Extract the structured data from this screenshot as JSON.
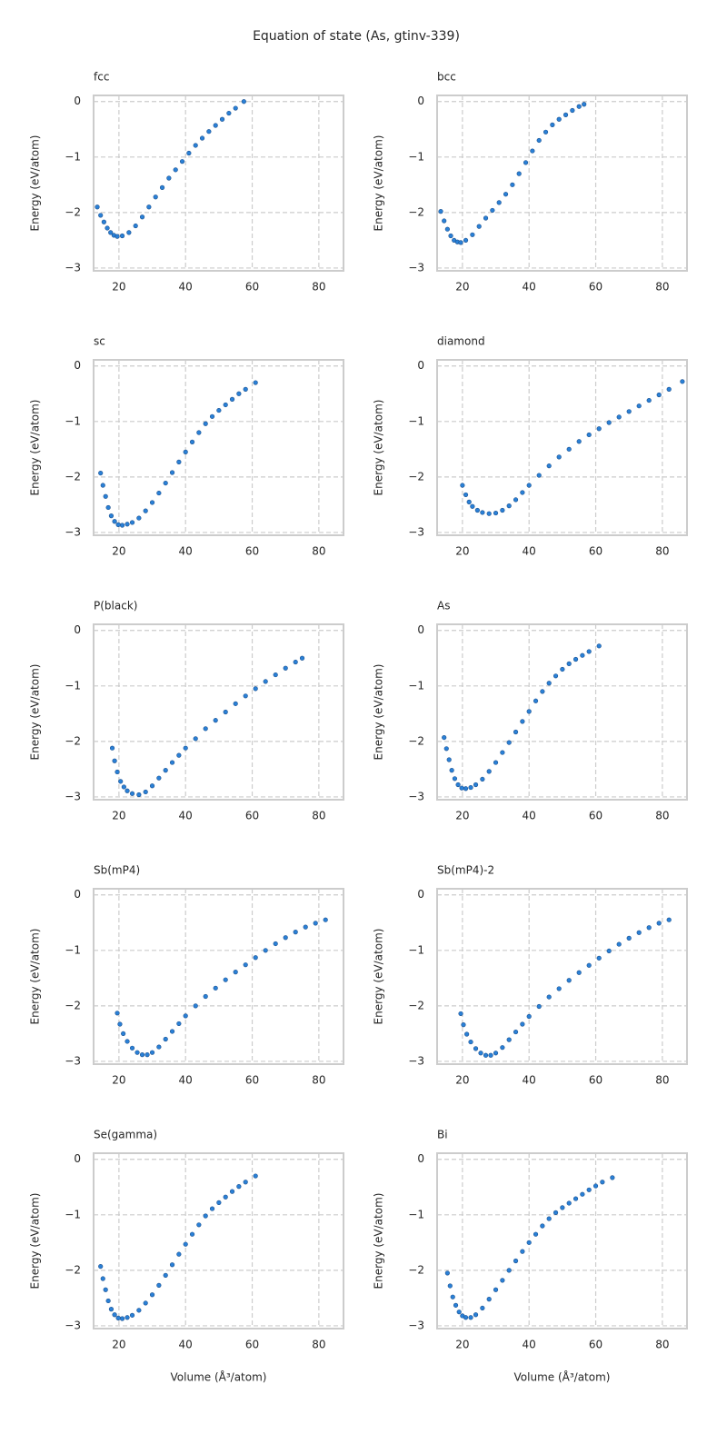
{
  "title": "Equation of state (As, gtinv-339)",
  "chart_data": [
    {
      "type": "scatter",
      "title": "fcc",
      "ylabel": "Energy (eV/atom)",
      "color": "#2a80d6",
      "grid": true,
      "xlim": [
        12.4,
        87.4
      ],
      "ylim": [
        -3.05,
        0.11
      ],
      "xticks": [
        20,
        40,
        60,
        80
      ],
      "yticks": [
        0,
        {
          "value": -1,
          "label": "−1"
        },
        {
          "value": -2,
          "label": "−2"
        },
        {
          "value": -3,
          "label": "−3"
        }
      ],
      "x": [
        13.5,
        14.5,
        15.5,
        16.5,
        17.5,
        18.5,
        19.5,
        21,
        23,
        25,
        27,
        29,
        31,
        33,
        35,
        37,
        39,
        41,
        43,
        45,
        47,
        49,
        51,
        53,
        55,
        57.5
      ],
      "values": [
        -1.9,
        -2.05,
        -2.17,
        -2.28,
        -2.36,
        -2.41,
        -2.43,
        -2.42,
        -2.36,
        -2.24,
        -2.08,
        -1.9,
        -1.72,
        -1.55,
        -1.38,
        -1.23,
        -1.08,
        -0.93,
        -0.79,
        -0.66,
        -0.54,
        -0.43,
        -0.32,
        -0.21,
        -0.12,
        0
      ]
    },
    {
      "type": "scatter",
      "title": "bcc",
      "ylabel": "Energy (eV/atom)",
      "color": "#2a80d6",
      "grid": true,
      "xlim": [
        12.4,
        87.4
      ],
      "ylim": [
        -3.05,
        0.11
      ],
      "xticks": [
        20,
        40,
        60,
        80
      ],
      "yticks": [
        0,
        {
          "value": -1,
          "label": "−1"
        },
        {
          "value": -2,
          "label": "−2"
        },
        {
          "value": -3,
          "label": "−3"
        }
      ],
      "x": [
        13.5,
        14.5,
        15.5,
        16.5,
        17.5,
        18.5,
        19.5,
        21,
        23,
        25,
        27,
        29,
        31,
        33,
        35,
        37,
        39,
        41,
        43,
        45,
        47,
        49,
        51,
        53,
        55,
        56.5
      ],
      "values": [
        -1.98,
        -2.15,
        -2.3,
        -2.42,
        -2.5,
        -2.53,
        -2.54,
        -2.5,
        -2.4,
        -2.25,
        -2.1,
        -1.96,
        -1.82,
        -1.67,
        -1.5,
        -1.3,
        -1.1,
        -0.89,
        -0.7,
        -0.55,
        -0.42,
        -0.32,
        -0.24,
        -0.16,
        -0.09,
        -0.05
      ]
    },
    {
      "type": "scatter",
      "title": "sc",
      "ylabel": "Energy (eV/atom)",
      "color": "#2a80d6",
      "grid": true,
      "xlim": [
        12.4,
        87.4
      ],
      "ylim": [
        -3.05,
        0.11
      ],
      "xticks": [
        20,
        40,
        60,
        80
      ],
      "yticks": [
        0,
        {
          "value": -1,
          "label": "−1"
        },
        {
          "value": -2,
          "label": "−2"
        },
        {
          "value": -3,
          "label": "−3"
        }
      ],
      "x": [
        14.5,
        15.2,
        16,
        16.8,
        17.7,
        18.7,
        19.8,
        21,
        22.5,
        24,
        26,
        28,
        30,
        32,
        34,
        36,
        38,
        40,
        42,
        44,
        46,
        48,
        50,
        52,
        54,
        56,
        58,
        61
      ],
      "values": [
        -1.93,
        -2.15,
        -2.35,
        -2.55,
        -2.7,
        -2.8,
        -2.86,
        -2.87,
        -2.85,
        -2.82,
        -2.74,
        -2.61,
        -2.46,
        -2.29,
        -2.11,
        -1.92,
        -1.73,
        -1.55,
        -1.37,
        -1.2,
        -1.04,
        -0.91,
        -0.8,
        -0.7,
        -0.6,
        -0.5,
        -0.42,
        -0.3
      ]
    },
    {
      "type": "scatter",
      "title": "diamond",
      "ylabel": "Energy (eV/atom)",
      "color": "#2a80d6",
      "grid": true,
      "xlim": [
        12.4,
        87.4
      ],
      "ylim": [
        -3.05,
        0.11
      ],
      "xticks": [
        20,
        40,
        60,
        80
      ],
      "yticks": [
        0,
        {
          "value": -1,
          "label": "−1"
        },
        {
          "value": -2,
          "label": "−2"
        },
        {
          "value": -3,
          "label": "−3"
        }
      ],
      "x": [
        20,
        21,
        22,
        23,
        24.5,
        26,
        28,
        30,
        32,
        34,
        36,
        38,
        40,
        43,
        46,
        49,
        52,
        55,
        58,
        61,
        64,
        67,
        70,
        73,
        76,
        79,
        82,
        86
      ],
      "values": [
        -2.15,
        -2.32,
        -2.45,
        -2.53,
        -2.6,
        -2.64,
        -2.66,
        -2.65,
        -2.6,
        -2.52,
        -2.41,
        -2.28,
        -2.15,
        -1.97,
        -1.8,
        -1.64,
        -1.5,
        -1.36,
        -1.24,
        -1.13,
        -1.02,
        -0.92,
        -0.82,
        -0.72,
        -0.62,
        -0.52,
        -0.42,
        -0.28
      ]
    },
    {
      "type": "scatter",
      "title": "P(black)",
      "ylabel": "Energy (eV/atom)",
      "color": "#2a80d6",
      "grid": true,
      "xlim": [
        12.4,
        87.4
      ],
      "ylim": [
        -3.05,
        0.11
      ],
      "xticks": [
        20,
        40,
        60,
        80
      ],
      "yticks": [
        0,
        {
          "value": -1,
          "label": "−1"
        },
        {
          "value": -2,
          "label": "−2"
        },
        {
          "value": -3,
          "label": "−3"
        }
      ],
      "x": [
        18,
        18.7,
        19.5,
        20.5,
        21.5,
        22.5,
        24,
        26,
        28,
        30,
        32,
        34,
        36,
        38,
        40,
        43,
        46,
        49,
        52,
        55,
        58,
        61,
        64,
        67,
        70,
        73,
        75
      ],
      "values": [
        -2.12,
        -2.35,
        -2.55,
        -2.72,
        -2.82,
        -2.89,
        -2.94,
        -2.96,
        -2.91,
        -2.8,
        -2.66,
        -2.52,
        -2.38,
        -2.25,
        -2.12,
        -1.95,
        -1.77,
        -1.62,
        -1.47,
        -1.32,
        -1.18,
        -1.05,
        -0.92,
        -0.8,
        -0.68,
        -0.57,
        -0.5
      ]
    },
    {
      "type": "scatter",
      "title": "As",
      "ylabel": "Energy (eV/atom)",
      "color": "#2a80d6",
      "grid": true,
      "xlim": [
        12.4,
        87.4
      ],
      "ylim": [
        -3.05,
        0.11
      ],
      "xticks": [
        20,
        40,
        60,
        80
      ],
      "yticks": [
        0,
        {
          "value": -1,
          "label": "−1"
        },
        {
          "value": -2,
          "label": "−2"
        },
        {
          "value": -3,
          "label": "−3"
        }
      ],
      "x": [
        14.5,
        15.2,
        16,
        16.8,
        17.7,
        18.7,
        19.8,
        21,
        22.5,
        24,
        26,
        28,
        30,
        32,
        34,
        36,
        38,
        40,
        42,
        44,
        46,
        48,
        50,
        52,
        54,
        56,
        58,
        61
      ],
      "values": [
        -1.93,
        -2.13,
        -2.33,
        -2.52,
        -2.67,
        -2.78,
        -2.84,
        -2.85,
        -2.83,
        -2.78,
        -2.68,
        -2.54,
        -2.38,
        -2.2,
        -2.02,
        -1.83,
        -1.64,
        -1.46,
        -1.27,
        -1.1,
        -0.95,
        -0.82,
        -0.7,
        -0.6,
        -0.52,
        -0.45,
        -0.38,
        -0.28
      ]
    },
    {
      "type": "scatter",
      "title": "Sb(mP4)",
      "ylabel": "Energy (eV/atom)",
      "color": "#2a80d6",
      "grid": true,
      "xlim": [
        12.4,
        87.4
      ],
      "ylim": [
        -3.05,
        0.11
      ],
      "xticks": [
        20,
        40,
        60,
        80
      ],
      "yticks": [
        0,
        {
          "value": -1,
          "label": "−1"
        },
        {
          "value": -2,
          "label": "−2"
        },
        {
          "value": -3,
          "label": "−3"
        }
      ],
      "x": [
        19.5,
        20.3,
        21.3,
        22.5,
        24,
        25.5,
        27,
        28.5,
        30,
        32,
        34,
        36,
        38,
        40,
        43,
        46,
        49,
        52,
        55,
        58,
        61,
        64,
        67,
        70,
        73,
        76,
        79,
        82
      ],
      "values": [
        -2.13,
        -2.33,
        -2.5,
        -2.64,
        -2.76,
        -2.84,
        -2.88,
        -2.88,
        -2.84,
        -2.74,
        -2.6,
        -2.46,
        -2.32,
        -2.18,
        -2.0,
        -1.83,
        -1.68,
        -1.53,
        -1.39,
        -1.26,
        -1.13,
        -1.0,
        -0.88,
        -0.77,
        -0.67,
        -0.58,
        -0.51,
        -0.45
      ]
    },
    {
      "type": "scatter",
      "title": "Sb(mP4)-2",
      "ylabel": "Energy (eV/atom)",
      "color": "#2a80d6",
      "grid": true,
      "xlim": [
        12.4,
        87.4
      ],
      "ylim": [
        -3.05,
        0.11
      ],
      "xticks": [
        20,
        40,
        60,
        80
      ],
      "yticks": [
        0,
        {
          "value": -1,
          "label": "−1"
        },
        {
          "value": -2,
          "label": "−2"
        },
        {
          "value": -3,
          "label": "−3"
        }
      ],
      "x": [
        19.5,
        20.3,
        21.3,
        22.5,
        24,
        25.5,
        27,
        28.5,
        30,
        32,
        34,
        36,
        38,
        40,
        43,
        46,
        49,
        52,
        55,
        58,
        61,
        64,
        67,
        70,
        73,
        76,
        79,
        82
      ],
      "values": [
        -2.14,
        -2.34,
        -2.51,
        -2.65,
        -2.77,
        -2.85,
        -2.89,
        -2.89,
        -2.85,
        -2.75,
        -2.61,
        -2.47,
        -2.33,
        -2.19,
        -2.01,
        -1.84,
        -1.69,
        -1.54,
        -1.4,
        -1.27,
        -1.14,
        -1.01,
        -0.89,
        -0.78,
        -0.68,
        -0.59,
        -0.51,
        -0.45
      ]
    },
    {
      "type": "scatter",
      "title": "Se(gamma)",
      "ylabel": "Energy (eV/atom)",
      "xlabel": "Volume (Å³/atom)",
      "color": "#2a80d6",
      "grid": true,
      "xlim": [
        12.4,
        87.4
      ],
      "ylim": [
        -3.05,
        0.11
      ],
      "xticks": [
        20,
        40,
        60,
        80
      ],
      "yticks": [
        0,
        {
          "value": -1,
          "label": "−1"
        },
        {
          "value": -2,
          "label": "−2"
        },
        {
          "value": -3,
          "label": "−3"
        }
      ],
      "x": [
        14.5,
        15.2,
        16,
        16.8,
        17.7,
        18.7,
        19.8,
        21,
        22.5,
        24,
        26,
        28,
        30,
        32,
        34,
        36,
        38,
        40,
        42,
        44,
        46,
        48,
        50,
        52,
        54,
        56,
        58,
        61
      ],
      "values": [
        -1.93,
        -2.15,
        -2.35,
        -2.55,
        -2.7,
        -2.8,
        -2.86,
        -2.87,
        -2.85,
        -2.81,
        -2.72,
        -2.59,
        -2.44,
        -2.27,
        -2.09,
        -1.9,
        -1.71,
        -1.53,
        -1.35,
        -1.18,
        -1.02,
        -0.89,
        -0.78,
        -0.68,
        -0.58,
        -0.49,
        -0.41,
        -0.3
      ]
    },
    {
      "type": "scatter",
      "title": "Bi",
      "ylabel": "Energy (eV/atom)",
      "xlabel": "Volume (Å³/atom)",
      "color": "#2a80d6",
      "grid": true,
      "xlim": [
        12.4,
        87.4
      ],
      "ylim": [
        -3.05,
        0.11
      ],
      "xticks": [
        20,
        40,
        60,
        80
      ],
      "yticks": [
        0,
        {
          "value": -1,
          "label": "−1"
        },
        {
          "value": -2,
          "label": "−2"
        },
        {
          "value": -3,
          "label": "−3"
        }
      ],
      "x": [
        15.5,
        16.3,
        17.1,
        18,
        19,
        20,
        21,
        22.5,
        24,
        26,
        28,
        30,
        32,
        34,
        36,
        38,
        40,
        42,
        44,
        46,
        48,
        50,
        52,
        54,
        56,
        58,
        60,
        62,
        65
      ],
      "values": [
        -2.05,
        -2.28,
        -2.48,
        -2.63,
        -2.75,
        -2.82,
        -2.85,
        -2.85,
        -2.8,
        -2.68,
        -2.52,
        -2.35,
        -2.18,
        -2.0,
        -1.83,
        -1.66,
        -1.5,
        -1.35,
        -1.2,
        -1.07,
        -0.96,
        -0.87,
        -0.79,
        -0.71,
        -0.63,
        -0.55,
        -0.48,
        -0.41,
        -0.33
      ]
    }
  ]
}
